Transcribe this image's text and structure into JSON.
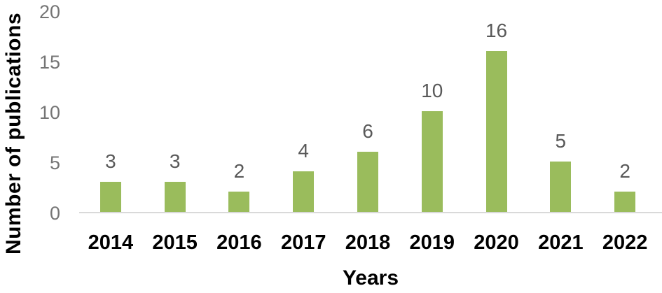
{
  "chart_data": {
    "type": "bar",
    "title": "",
    "categories": [
      "2014",
      "2015",
      "2016",
      "2017",
      "2018",
      "2019",
      "2020",
      "2021",
      "2022"
    ],
    "values": [
      3,
      3,
      2,
      4,
      6,
      10,
      16,
      5,
      2
    ],
    "xlabel": "Years",
    "ylabel": "Number of publications",
    "yticks": [
      0,
      5,
      10,
      15,
      20
    ],
    "ylim": [
      0,
      20
    ],
    "grid": false,
    "legend": "none",
    "data_labels": true,
    "colors": {
      "bar": "#9abc5c",
      "value_label": "#595959",
      "tick_label": "#757575",
      "axis_line": "#d9d9d9",
      "category_label": "#000000",
      "axis_title": "#000000"
    }
  }
}
